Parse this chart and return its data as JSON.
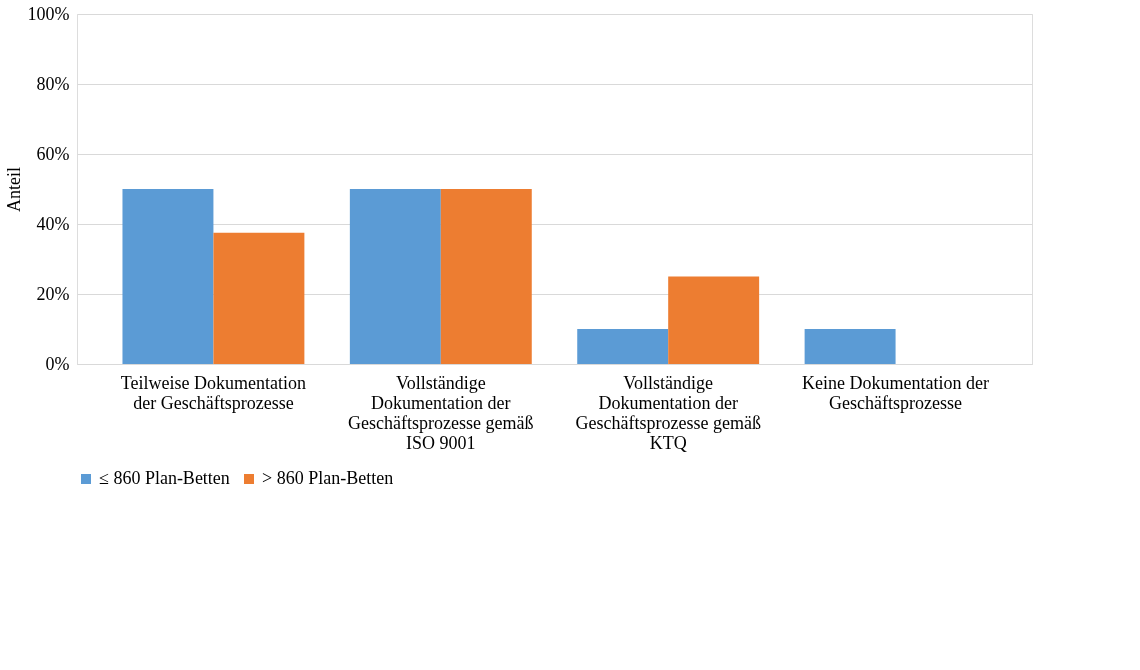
{
  "chart_data": {
    "type": "bar",
    "ylabel": "Anteil",
    "categories": [
      "Teilweise Dokumentation der Geschäftsprozesse",
      "Vollständige Dokumentation der Geschäftsprozesse gemäß ISO 9001",
      "Vollständige Dokumentation der Geschäftsprozesse gemäß KTQ",
      "Keine Dokumentation der Geschäftsprozesse"
    ],
    "series": [
      {
        "name": "≤ 860 Plan-Betten",
        "color": "#5b9bd5",
        "values": [
          50,
          50,
          10,
          10
        ]
      },
      {
        "name": "> 860 Plan-Betten",
        "color": "#ed7d31",
        "values": [
          37.5,
          50,
          25,
          0
        ]
      }
    ],
    "ylim": [
      0,
      100
    ],
    "yticks": [
      {
        "value": 0,
        "label": "0%"
      },
      {
        "value": 20,
        "label": "20%"
      },
      {
        "value": 40,
        "label": "40%"
      },
      {
        "value": 60,
        "label": "60%"
      },
      {
        "value": 80,
        "label": "80%"
      },
      {
        "value": 100,
        "label": "100%"
      }
    ],
    "grid": "y",
    "legend": "bottom"
  }
}
